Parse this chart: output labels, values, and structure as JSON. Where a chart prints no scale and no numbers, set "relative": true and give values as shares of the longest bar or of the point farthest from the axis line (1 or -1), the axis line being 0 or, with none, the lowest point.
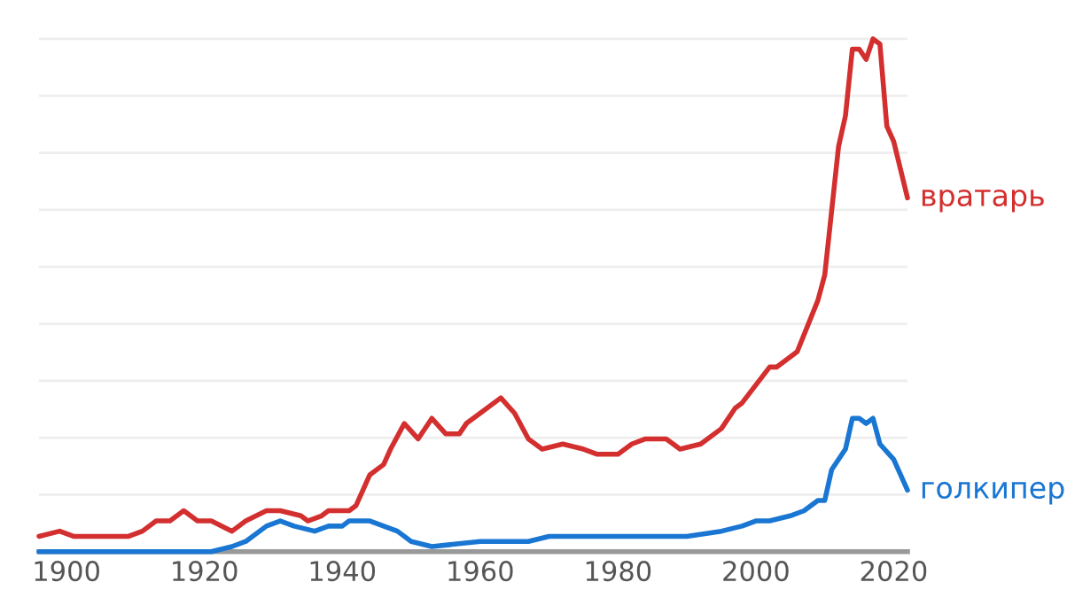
{
  "chart_data": {
    "type": "line",
    "relative": true,
    "xlim": [
      1896,
      2022
    ],
    "xticks": [
      1900,
      1920,
      1940,
      1960,
      1980,
      2000,
      2020
    ],
    "tick_labels": "x",
    "grid": "y",
    "legend": false,
    "series": [
      {
        "name": "вратарь",
        "color": "#d32f2f",
        "x": [
          1896,
          1899,
          1901,
          1903,
          1906,
          1909,
          1911,
          1913,
          1915,
          1917,
          1919,
          1921,
          1924,
          1926,
          1929,
          1931,
          1934,
          1935,
          1937,
          1938,
          1940,
          1941,
          1942,
          1944,
          1946,
          1947,
          1949,
          1951,
          1953,
          1955,
          1957,
          1958,
          1960,
          1963,
          1965,
          1967,
          1969,
          1972,
          1975,
          1977,
          1980,
          1982,
          1984,
          1987,
          1989,
          1992,
          1995,
          1997,
          1998,
          2002,
          2003,
          2006,
          2009,
          2010,
          2012,
          2013,
          2014,
          2015,
          2016,
          2017,
          2018,
          2019,
          2020,
          2022
        ],
        "values": [
          0.03,
          0.04,
          0.03,
          0.03,
          0.03,
          0.03,
          0.04,
          0.06,
          0.06,
          0.08,
          0.06,
          0.06,
          0.04,
          0.06,
          0.08,
          0.08,
          0.07,
          0.06,
          0.07,
          0.08,
          0.08,
          0.08,
          0.09,
          0.15,
          0.17,
          0.2,
          0.25,
          0.22,
          0.26,
          0.23,
          0.23,
          0.25,
          0.27,
          0.3,
          0.27,
          0.22,
          0.2,
          0.21,
          0.2,
          0.19,
          0.19,
          0.21,
          0.22,
          0.22,
          0.2,
          0.21,
          0.24,
          0.28,
          0.29,
          0.36,
          0.36,
          0.39,
          0.49,
          0.54,
          0.79,
          0.85,
          0.98,
          0.98,
          0.96,
          1.0,
          0.99,
          0.83,
          0.8,
          0.69
        ]
      },
      {
        "name": "голкипер",
        "color": "#1976d2",
        "x": [
          1896,
          1921,
          1924,
          1926,
          1929,
          1931,
          1933,
          1936,
          1938,
          1940,
          1941,
          1944,
          1946,
          1948,
          1950,
          1953,
          1960,
          1963,
          1967,
          1970,
          1980,
          1990,
          1995,
          1998,
          2000,
          2002,
          2005,
          2007,
          2009,
          2010,
          2011,
          2013,
          2014,
          2015,
          2016,
          2017,
          2018,
          2020,
          2022
        ],
        "values": [
          0.0,
          0.0,
          0.01,
          0.02,
          0.05,
          0.06,
          0.05,
          0.04,
          0.05,
          0.05,
          0.06,
          0.06,
          0.05,
          0.04,
          0.02,
          0.01,
          0.02,
          0.02,
          0.02,
          0.03,
          0.03,
          0.03,
          0.04,
          0.05,
          0.06,
          0.06,
          0.07,
          0.08,
          0.1,
          0.1,
          0.16,
          0.2,
          0.26,
          0.26,
          0.25,
          0.26,
          0.21,
          0.18,
          0.12
        ]
      }
    ]
  }
}
